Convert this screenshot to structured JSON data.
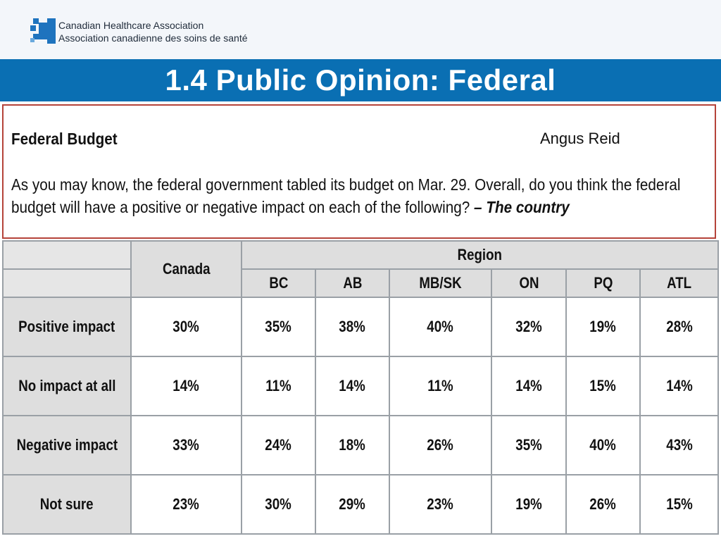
{
  "header": {
    "org_name_en": "Canadian Healthcare Association",
    "org_name_fr": "Association canadienne des soins de santé",
    "logo_icon": "cha-logo-icon"
  },
  "title": "1.4 Public Opinion: Federal",
  "question_box": {
    "heading": "Federal Budget",
    "source": "Angus Reid",
    "question_line1": "As you may know, the federal government tabled its budget on Mar. 29. Overall, do you think the federal",
    "question_line2": "budget will have a positive or negative impact on each of the following?",
    "question_emphasis": "– The country"
  },
  "table": {
    "col_canada": "Canada",
    "region_label": "Region",
    "regions": [
      "BC",
      "AB",
      "MB/SK",
      "ON",
      "PQ",
      "ATL"
    ],
    "rows": [
      {
        "label": "Positive impact",
        "values": [
          "30%",
          "35%",
          "38%",
          "40%",
          "32%",
          "19%",
          "28%"
        ]
      },
      {
        "label": "No impact at all",
        "values": [
          "14%",
          "11%",
          "14%",
          "11%",
          "14%",
          "15%",
          "14%"
        ]
      },
      {
        "label": "Negative impact",
        "values": [
          "33%",
          "24%",
          "18%",
          "26%",
          "35%",
          "40%",
          "43%"
        ]
      },
      {
        "label": "Not sure",
        "values": [
          "23%",
          "30%",
          "29%",
          "23%",
          "19%",
          "26%",
          "15%"
        ]
      }
    ]
  },
  "colors": {
    "title_bar": "#0a6fb3",
    "box_border": "#b5433a",
    "header_fill": "#dedede"
  }
}
